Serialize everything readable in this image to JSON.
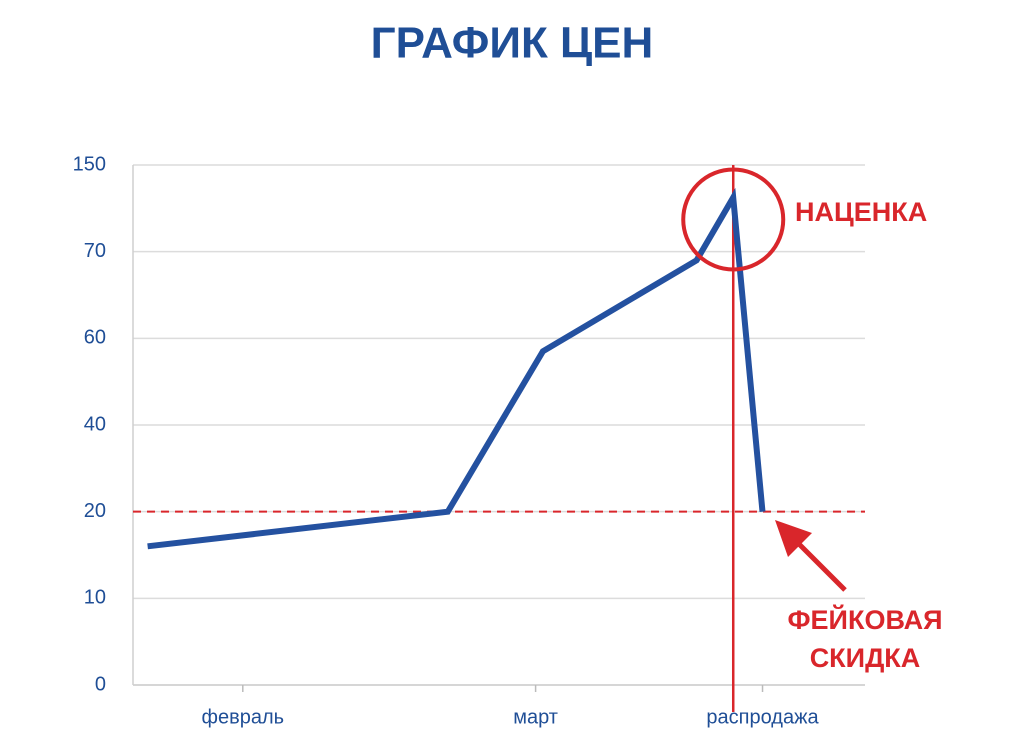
{
  "chart_data": {
    "type": "line",
    "title": "ГРАФИК ЦЕН",
    "x": [
      2,
      43,
      56,
      77,
      82,
      86
    ],
    "values": [
      16,
      20,
      57,
      69,
      120,
      20
    ],
    "color": "#2451a0",
    "xlim": [
      0,
      100
    ],
    "xticks": [
      {
        "value": 15,
        "label": "февраль"
      },
      {
        "value": 55,
        "label": "март"
      },
      {
        "value": 86,
        "label": "распродажа"
      }
    ],
    "ylim": [
      0,
      150
    ],
    "yticks": [
      0,
      10,
      20,
      40,
      60,
      70,
      150
    ],
    "grid": true,
    "annotation_color": "#d9262b",
    "reference_x": 82,
    "reference_y": 20,
    "markup_label": "НАЦЕНКА",
    "discount_label": [
      "ФЕЙКОВАЯ",
      "СКИДКА"
    ]
  }
}
